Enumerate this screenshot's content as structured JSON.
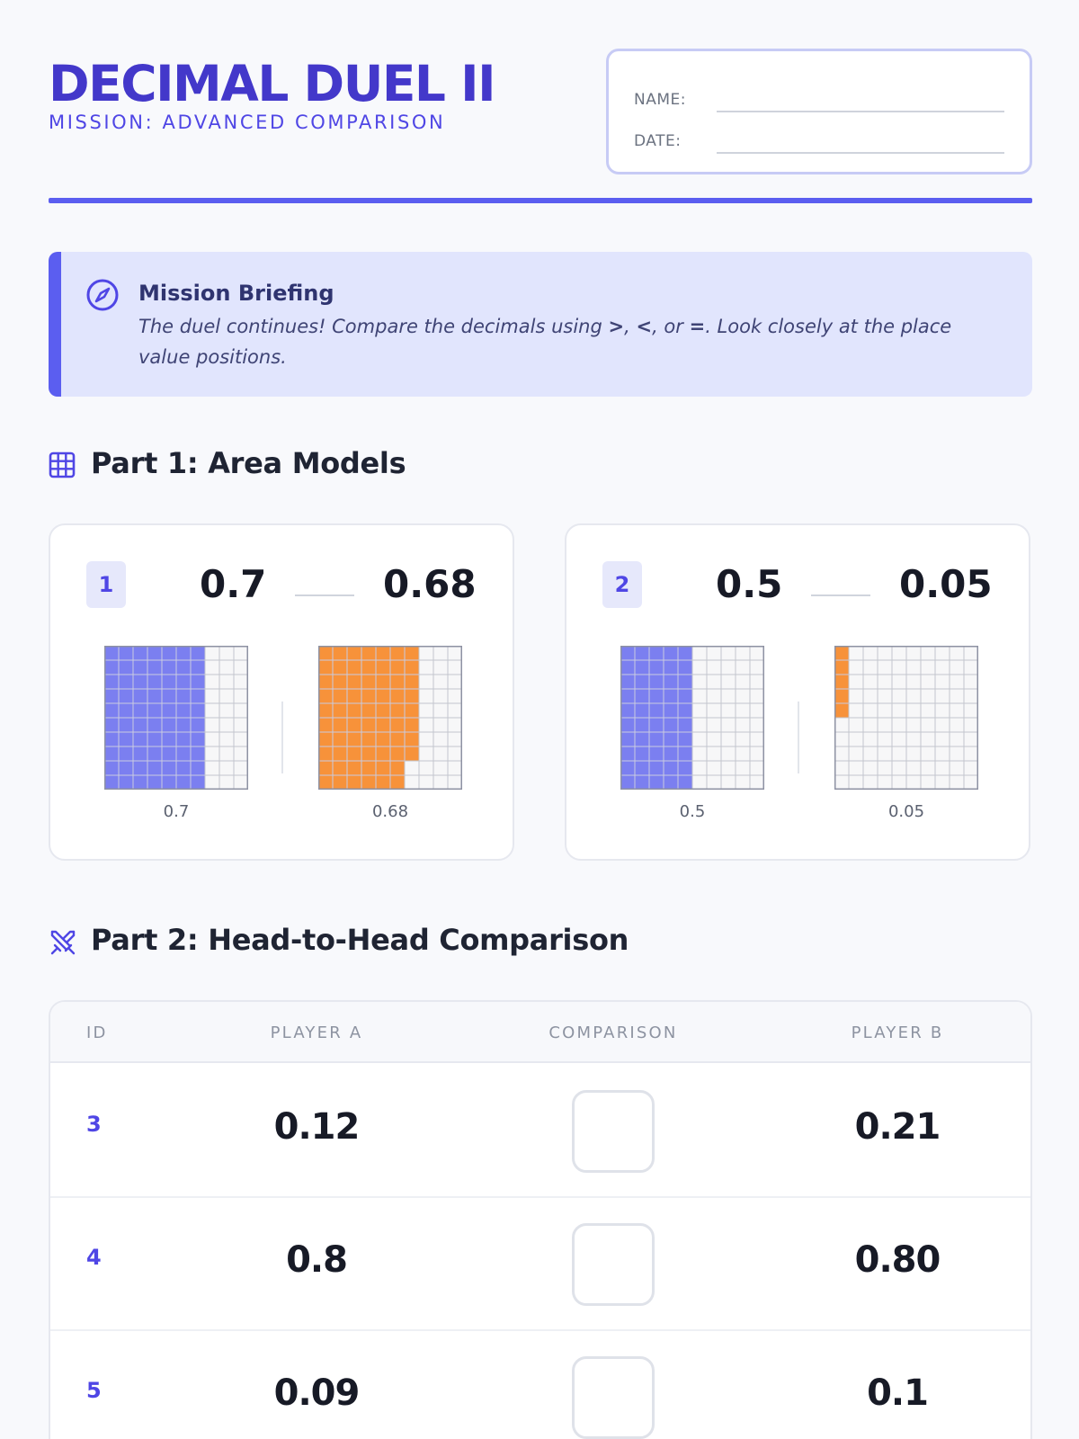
{
  "header": {
    "title": "DECIMAL DUEL II",
    "subtitle": "MISSION: ADVANCED COMPARISON",
    "name_label": "NAME:",
    "date_label": "DATE:"
  },
  "briefing": {
    "icon": "compass-icon",
    "title": "Mission Briefing",
    "text_before": "The duel continues! Compare the decimals using ",
    "symbol_gt": ">",
    "sep1": ", ",
    "symbol_lt": "<",
    "sep2": ", or ",
    "symbol_eq": "=",
    "text_after": ". Look closely at the place value positions."
  },
  "part1": {
    "icon": "grid-icon",
    "title": "Part 1: Area Models",
    "problems": [
      {
        "id": "1",
        "a": "0.7",
        "b": "0.68",
        "a_fill": 0.7,
        "b_fill": 0.68,
        "a_caption": "0.7",
        "b_caption": "0.68"
      },
      {
        "id": "2",
        "a": "0.5",
        "b": "0.05",
        "a_fill": 0.5,
        "b_fill": 0.05,
        "a_caption": "0.5",
        "b_caption": "0.05"
      }
    ],
    "colors": {
      "a": "#7b7ff0",
      "b": "#f7923a"
    }
  },
  "part2": {
    "icon": "crossed-swords-icon",
    "title": "Part 2: Head-to-Head Comparison",
    "columns": [
      "ID",
      "PLAYER A",
      "COMPARISON",
      "PLAYER B"
    ],
    "rows": [
      {
        "id": "3",
        "a": "0.12",
        "b": "0.21"
      },
      {
        "id": "4",
        "a": "0.8",
        "b": "0.80"
      },
      {
        "id": "5",
        "a": "0.09",
        "b": "0.1"
      }
    ]
  }
}
